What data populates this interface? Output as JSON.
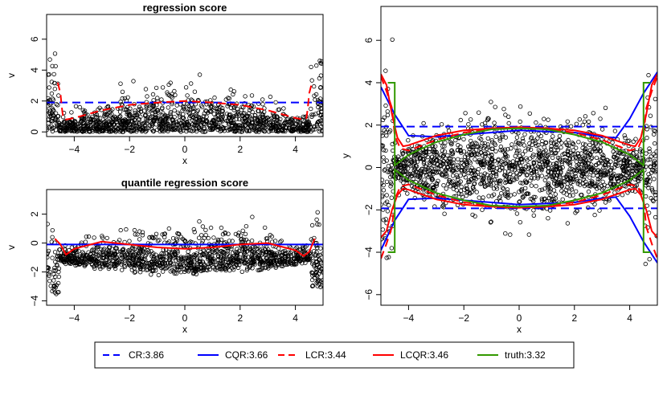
{
  "chart_data": [
    {
      "type": "scatter",
      "title": "regression score",
      "xlabel": "x",
      "ylabel": "v",
      "xlim": [
        -5,
        5
      ],
      "ylim": [
        -0.3,
        7.6
      ],
      "xticks": [
        -4,
        -2,
        0,
        2,
        4
      ],
      "yticks": [
        0,
        2,
        4,
        6
      ],
      "series": [
        {
          "kind": "hline",
          "style": "dashed",
          "color": "#0000ff",
          "y": 1.9
        },
        {
          "kind": "line",
          "style": "dashed",
          "color": "#ff0000",
          "x": [
            -4.6,
            -4.5,
            -4.45,
            -4.4,
            -4.3,
            -4.0,
            -3.0,
            -2.0,
            -1.0,
            0.0,
            1.0,
            2.0,
            3.0,
            4.0,
            4.3,
            4.4,
            4.45,
            4.5,
            4.6
          ],
          "y": [
            3.2,
            2.5,
            1.6,
            0.9,
            0.8,
            0.9,
            1.4,
            1.75,
            1.9,
            2.0,
            1.9,
            1.75,
            1.4,
            0.9,
            0.8,
            0.9,
            1.6,
            2.5,
            3.2
          ]
        }
      ],
      "points_note": "dense open-circle scatter: band bounded by ~0.4*(1-(x/5)^2)*6 in the middle, spikes to ~6 near |x|>4.6"
    },
    {
      "type": "scatter",
      "title": "quantile regression score",
      "xlabel": "x",
      "ylabel": "v",
      "xlim": [
        -5,
        5
      ],
      "ylim": [
        -4.3,
        3.7
      ],
      "xticks": [
        -4,
        -2,
        0,
        2,
        4
      ],
      "yticks": [
        -4,
        -2,
        0,
        2
      ],
      "series": [
        {
          "kind": "hline",
          "style": "solid",
          "color": "#0000ff",
          "y": -0.1
        },
        {
          "kind": "line",
          "style": "solid",
          "color": "#ff0000",
          "x": [
            -4.7,
            -4.5,
            -4.3,
            -4.0,
            -3.0,
            -2.0,
            -1.0,
            0.0,
            1.0,
            2.0,
            3.0,
            4.0,
            4.3,
            4.5,
            4.7
          ],
          "y": [
            0.3,
            -0.1,
            -0.8,
            -0.4,
            0.1,
            -0.1,
            -0.3,
            -0.4,
            -0.3,
            -0.1,
            0.0,
            -0.5,
            -0.9,
            -0.6,
            0.3
          ]
        }
      ]
    },
    {
      "type": "scatter",
      "title": "",
      "xlabel": "x",
      "ylabel": "y",
      "xlim": [
        -5,
        5
      ],
      "ylim": [
        -6.5,
        7.6
      ],
      "xticks": [
        -4,
        -2,
        0,
        2,
        4
      ],
      "yticks": [
        -6,
        -4,
        -2,
        0,
        2,
        4,
        6
      ],
      "series": [
        {
          "name": "CR:3.86",
          "kind": "band-dashed",
          "color": "#0000ff",
          "upper": 1.93,
          "lower": -1.93
        },
        {
          "name": "CQR:3.66",
          "kind": "band",
          "color": "#0000ff",
          "x": [
            -5.0,
            -4.5,
            -4.0,
            -3.0,
            -2.0,
            -1.0,
            0.0,
            1.0,
            2.0,
            3.0,
            3.5,
            4.0,
            4.5,
            5.0
          ],
          "upper": [
            3.8,
            2.5,
            1.5,
            1.45,
            1.55,
            1.65,
            1.75,
            1.7,
            1.65,
            1.45,
            1.4,
            2.3,
            3.5,
            4.5
          ],
          "lower": [
            -3.9,
            -2.5,
            -1.5,
            -1.45,
            -1.55,
            -1.65,
            -1.75,
            -1.7,
            -1.65,
            -1.45,
            -1.4,
            -2.3,
            -3.5,
            -4.5
          ]
        },
        {
          "name": "LCR:3.44",
          "kind": "band-dashed",
          "color": "#ff0000",
          "x": [
            -5.0,
            -4.8,
            -4.6,
            -4.5,
            -4.3,
            -4.0,
            -3.0,
            -2.0,
            -1.0,
            0.0,
            1.0,
            2.0,
            3.0,
            4.0,
            4.3,
            4.5,
            4.6,
            4.8,
            5.0
          ],
          "upper": [
            4.3,
            3.6,
            2.8,
            1.5,
            0.9,
            0.8,
            1.3,
            1.65,
            1.8,
            1.9,
            1.8,
            1.65,
            1.3,
            0.8,
            0.9,
            1.5,
            2.8,
            3.6,
            4.3
          ],
          "lower": [
            -4.3,
            -3.6,
            -2.8,
            -1.5,
            -0.9,
            -0.8,
            -1.3,
            -1.65,
            -1.8,
            -1.9,
            -1.8,
            -1.65,
            -1.3,
            -0.8,
            -0.9,
            -1.5,
            -2.8,
            -3.6,
            -4.3
          ]
        },
        {
          "name": "LCQR:3.46",
          "kind": "band",
          "color": "#ff0000",
          "x": [
            -5.0,
            -4.8,
            -4.6,
            -4.4,
            -4.2,
            -4.0,
            -3.0,
            -2.0,
            -1.0,
            0.0,
            1.0,
            2.0,
            3.0,
            4.0,
            4.2,
            4.4,
            4.6,
            4.8,
            5.0
          ],
          "upper": [
            4.4,
            3.9,
            2.5,
            1.4,
            1.0,
            1.05,
            1.5,
            1.75,
            1.85,
            1.9,
            1.85,
            1.75,
            1.5,
            1.05,
            1.0,
            1.4,
            2.5,
            3.9,
            4.4
          ],
          "lower": [
            -3.3,
            -3.0,
            -2.0,
            -1.3,
            -1.0,
            -1.05,
            -1.5,
            -1.75,
            -1.85,
            -1.9,
            -1.85,
            -1.75,
            -1.5,
            -1.05,
            -1.0,
            -1.3,
            -2.0,
            -3.0,
            -3.3
          ]
        },
        {
          "name": "truth:3.32",
          "kind": "band",
          "color": "#339900",
          "x": [
            -4.75,
            -4.5,
            -4.5,
            -4.0,
            -3.0,
            -2.0,
            -1.0,
            0.0,
            1.0,
            2.0,
            3.0,
            4.0,
            4.5,
            4.5,
            4.75
          ],
          "upper": [
            4.0,
            4.0,
            0.1,
            0.6,
            1.2,
            1.55,
            1.8,
            1.85,
            1.8,
            1.55,
            1.2,
            0.6,
            0.1,
            4.0,
            4.0
          ],
          "lower": [
            -4.0,
            -4.0,
            -0.1,
            -0.6,
            -1.2,
            -1.55,
            -1.8,
            -1.85,
            -1.8,
            -1.55,
            -1.2,
            -0.6,
            -0.1,
            -4.0,
            -4.0
          ]
        }
      ]
    }
  ],
  "legend": {
    "items": [
      {
        "label": "CR:3.86",
        "color": "#0000ff",
        "dashed": true
      },
      {
        "label": "CQR:3.66",
        "color": "#0000ff",
        "dashed": false
      },
      {
        "label": "LCR:3.44",
        "color": "#ff0000",
        "dashed": true
      },
      {
        "label": "LCQR:3.46",
        "color": "#ff0000",
        "dashed": false
      },
      {
        "label": "truth:3.32",
        "color": "#339900",
        "dashed": false
      }
    ]
  }
}
